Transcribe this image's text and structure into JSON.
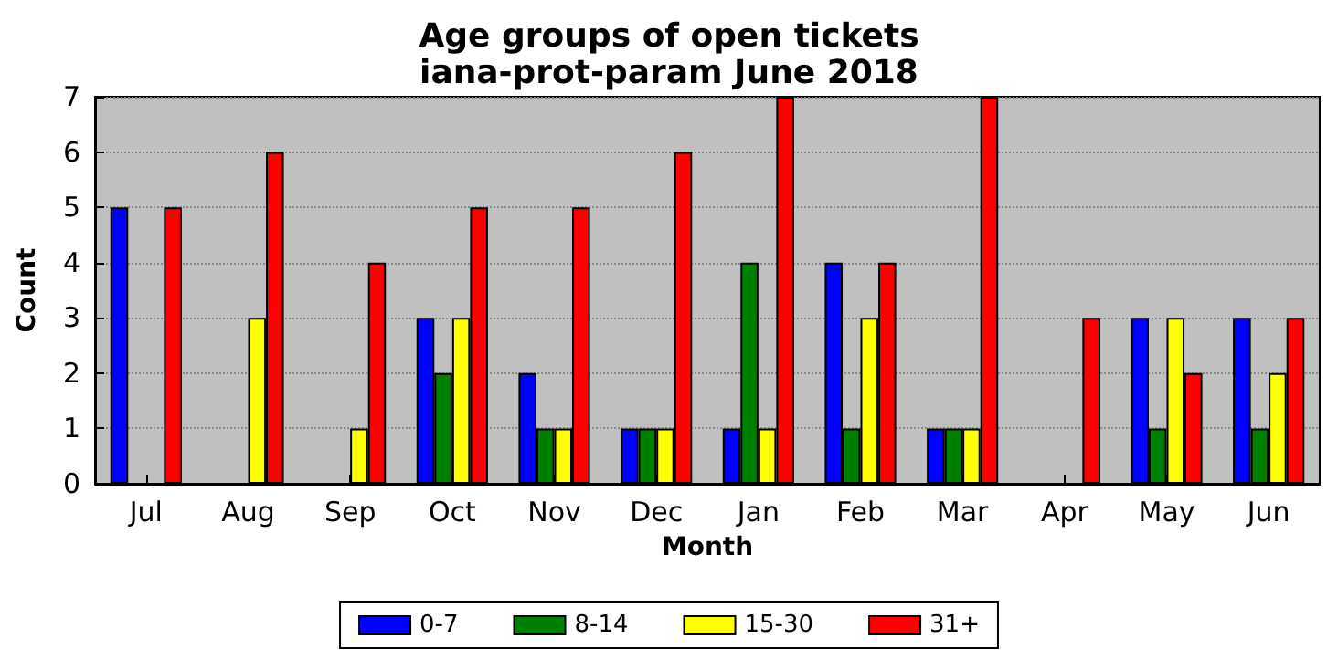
{
  "chart_data": {
    "type": "bar",
    "title": "Age groups of open tickets",
    "subtitle": "iana-prot-param June 2018",
    "xlabel": "Month",
    "ylabel": "Count",
    "categories": [
      "Jul",
      "Aug",
      "Sep",
      "Oct",
      "Nov",
      "Dec",
      "Jan",
      "Feb",
      "Mar",
      "Apr",
      "May",
      "Jun"
    ],
    "series": [
      {
        "name": "0-7",
        "color": "#0000ff",
        "values": [
          5,
          0,
          0,
          3,
          2,
          1,
          1,
          4,
          1,
          0,
          3,
          3
        ]
      },
      {
        "name": "8-14",
        "color": "#008000",
        "values": [
          0,
          0,
          0,
          2,
          1,
          1,
          4,
          1,
          1,
          0,
          1,
          1
        ]
      },
      {
        "name": "15-30",
        "color": "#ffff00",
        "values": [
          0,
          3,
          1,
          3,
          1,
          1,
          1,
          3,
          1,
          0,
          3,
          2
        ]
      },
      {
        "name": "31+",
        "color": "#ff0000",
        "values": [
          5,
          6,
          4,
          5,
          5,
          6,
          7,
          4,
          7,
          3,
          2,
          3
        ]
      }
    ],
    "ylim": [
      0,
      7
    ],
    "yticks": [
      0,
      1,
      2,
      3,
      4,
      5,
      6,
      7
    ],
    "grid": "y",
    "legend": "bottom"
  }
}
